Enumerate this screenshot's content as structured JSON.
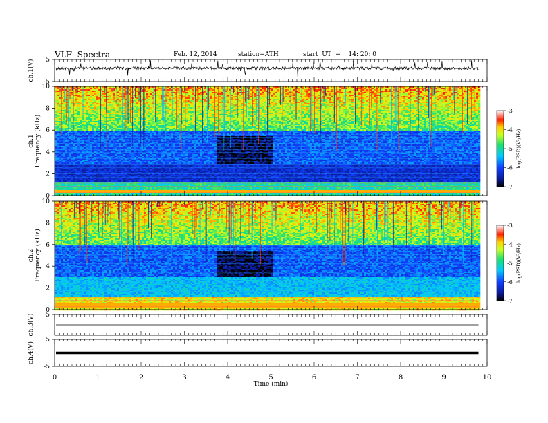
{
  "header": {
    "title": "VLF  Spectra",
    "date": "Feb. 12, 2014",
    "station": "station=ATH",
    "start": "start  UT  =    14: 20: 0"
  },
  "chart_data": [
    {
      "type": "line",
      "panel": "ch1-waveform",
      "ylabel": "ch.1(V)",
      "ylim": [
        -5,
        5
      ],
      "yticks": [
        "5",
        "-5"
      ],
      "xlim": [
        0,
        10
      ],
      "description_values": "dense noisy voltage trace near +1 V with impulsive spikes, ending at ~9.8 min"
    },
    {
      "type": "heatmap",
      "panel": "ch1-spectrogram",
      "ylabel": "ch.1\nFrequency  (kHz)",
      "ylim": [
        0,
        10
      ],
      "yticks": [
        "0",
        "2",
        "4",
        "6",
        "8",
        "10"
      ],
      "xlim": [
        0,
        10
      ],
      "data_end_min": 9.8,
      "quiet_interval_min": [
        3.7,
        5.0
      ],
      "colorbar": {
        "label": "log(PSD)(V²/Hz)",
        "range": [
          -7,
          -3
        ],
        "ticks": [
          "-3",
          "-4",
          "-5",
          "-6",
          "-7"
        ]
      }
    },
    {
      "type": "heatmap",
      "panel": "ch2-spectrogram",
      "ylabel": "ch.2\nFrequency  (kHz)",
      "ylim": [
        0,
        10
      ],
      "yticks": [
        "0",
        "2",
        "4",
        "6",
        "8",
        "10"
      ],
      "xlim": [
        0,
        10
      ],
      "data_end_min": 9.8,
      "quiet_interval_min": [
        3.7,
        5.0
      ],
      "colorbar": {
        "label": "log(PSD)(V²/Hz)",
        "range": [
          -7,
          -3
        ],
        "ticks": [
          "-3",
          "-4",
          "-5",
          "-6",
          "-7"
        ]
      }
    },
    {
      "type": "line",
      "panel": "ch3-waveform",
      "ylabel": "ch.3(V)",
      "ylim": [
        -5,
        5
      ],
      "yticks": [
        "5"
      ],
      "xlim": [
        0,
        10
      ],
      "level_v": 0
    },
    {
      "type": "line",
      "panel": "ch4-waveform",
      "ylabel": "ch.4(V)",
      "ylim": [
        -5,
        5
      ],
      "yticks": [
        "5",
        "-5"
      ],
      "xlim": [
        0,
        10
      ],
      "level_v": 0
    }
  ],
  "xaxis": {
    "label": "Time  (min)",
    "ticks": [
      "0",
      "1",
      "2",
      "3",
      "4",
      "5",
      "6",
      "7",
      "8",
      "9",
      "10"
    ]
  }
}
